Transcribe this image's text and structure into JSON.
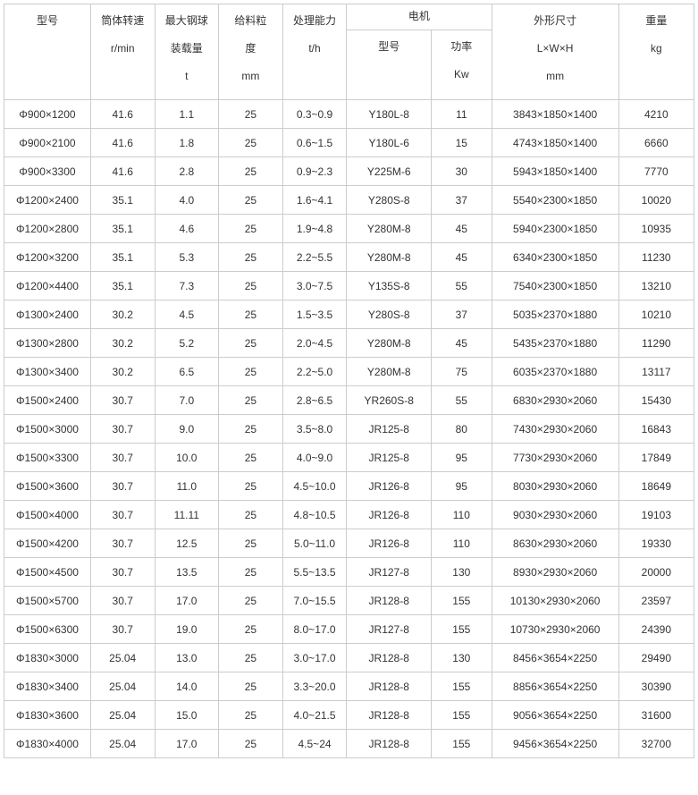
{
  "headers": {
    "model": "型号",
    "speed": "筒体转速",
    "speed_unit": "r/min",
    "load": "最大钢球",
    "load2": "装载量",
    "load_unit": "t",
    "feed": "给料粒",
    "feed2": "度",
    "feed_unit": "mm",
    "capacity": "处理能力",
    "capacity_unit": "t/h",
    "motor": "电机",
    "motor_model": "型号",
    "motor_power": "功率",
    "motor_power_unit": "Kw",
    "dim": "外形尺寸",
    "dim2": "L×W×H",
    "dim_unit": "mm",
    "weight": "重量",
    "weight_unit": "kg"
  },
  "rows": [
    {
      "model": "Φ900×1200",
      "speed": "41.6",
      "load": "1.1",
      "feed": "25",
      "capacity": "0.3~0.9",
      "motor_model": "Y180L-8",
      "motor_power": "11",
      "dim": "3843×1850×1400",
      "weight": "4210"
    },
    {
      "model": "Φ900×2100",
      "speed": "41.6",
      "load": "1.8",
      "feed": "25",
      "capacity": "0.6~1.5",
      "motor_model": "Y180L-6",
      "motor_power": "15",
      "dim": "4743×1850×1400",
      "weight": "6660"
    },
    {
      "model": "Φ900×3300",
      "speed": "41.6",
      "load": "2.8",
      "feed": "25",
      "capacity": "0.9~2.3",
      "motor_model": "Y225M-6",
      "motor_power": "30",
      "dim": "5943×1850×1400",
      "weight": "7770"
    },
    {
      "model": "Φ1200×2400",
      "speed": "35.1",
      "load": "4.0",
      "feed": "25",
      "capacity": "1.6~4.1",
      "motor_model": "Y280S-8",
      "motor_power": "37",
      "dim": "5540×2300×1850",
      "weight": "10020"
    },
    {
      "model": "Φ1200×2800",
      "speed": "35.1",
      "load": "4.6",
      "feed": "25",
      "capacity": "1.9~4.8",
      "motor_model": "Y280M-8",
      "motor_power": "45",
      "dim": "5940×2300×1850",
      "weight": "10935"
    },
    {
      "model": "Φ1200×3200",
      "speed": "35.1",
      "load": "5.3",
      "feed": "25",
      "capacity": "2.2~5.5",
      "motor_model": "Y280M-8",
      "motor_power": "45",
      "dim": "6340×2300×1850",
      "weight": "11230"
    },
    {
      "model": "Φ1200×4400",
      "speed": "35.1",
      "load": "7.3",
      "feed": "25",
      "capacity": "3.0~7.5",
      "motor_model": "Y135S-8",
      "motor_power": "55",
      "dim": "7540×2300×1850",
      "weight": "13210"
    },
    {
      "model": "Φ1300×2400",
      "speed": "30.2",
      "load": "4.5",
      "feed": "25",
      "capacity": "1.5~3.5",
      "motor_model": "Y280S-8",
      "motor_power": "37",
      "dim": "5035×2370×1880",
      "weight": "10210"
    },
    {
      "model": "Φ1300×2800",
      "speed": "30.2",
      "load": "5.2",
      "feed": "25",
      "capacity": "2.0~4.5",
      "motor_model": "Y280M-8",
      "motor_power": "45",
      "dim": "5435×2370×1880",
      "weight": "11290"
    },
    {
      "model": "Φ1300×3400",
      "speed": "30.2",
      "load": "6.5",
      "feed": "25",
      "capacity": "2.2~5.0",
      "motor_model": "Y280M-8",
      "motor_power": "75",
      "dim": "6035×2370×1880",
      "weight": "13117"
    },
    {
      "model": "Φ1500×2400",
      "speed": "30.7",
      "load": "7.0",
      "feed": "25",
      "capacity": "2.8~6.5",
      "motor_model": "YR260S-8",
      "motor_power": "55",
      "dim": "6830×2930×2060",
      "weight": "15430"
    },
    {
      "model": "Φ1500×3000",
      "speed": "30.7",
      "load": "9.0",
      "feed": "25",
      "capacity": "3.5~8.0",
      "motor_model": "JR125-8",
      "motor_power": "80",
      "dim": "7430×2930×2060",
      "weight": "16843"
    },
    {
      "model": "Φ1500×3300",
      "speed": "30.7",
      "load": "10.0",
      "feed": "25",
      "capacity": "4.0~9.0",
      "motor_model": "JR125-8",
      "motor_power": "95",
      "dim": "7730×2930×2060",
      "weight": "17849"
    },
    {
      "model": "Φ1500×3600",
      "speed": "30.7",
      "load": "11.0",
      "feed": "25",
      "capacity": "4.5~10.0",
      "motor_model": "JR126-8",
      "motor_power": "95",
      "dim": "8030×2930×2060",
      "weight": "18649"
    },
    {
      "model": "Φ1500×4000",
      "speed": "30.7",
      "load": "11.11",
      "feed": "25",
      "capacity": "4.8~10.5",
      "motor_model": "JR126-8",
      "motor_power": "110",
      "dim": "9030×2930×2060",
      "weight": "19103"
    },
    {
      "model": "Φ1500×4200",
      "speed": "30.7",
      "load": "12.5",
      "feed": "25",
      "capacity": "5.0~11.0",
      "motor_model": "JR126-8",
      "motor_power": "110",
      "dim": "8630×2930×2060",
      "weight": "19330"
    },
    {
      "model": "Φ1500×4500",
      "speed": "30.7",
      "load": "13.5",
      "feed": "25",
      "capacity": "5.5~13.5",
      "motor_model": "JR127-8",
      "motor_power": "130",
      "dim": "8930×2930×2060",
      "weight": "20000"
    },
    {
      "model": "Φ1500×5700",
      "speed": "30.7",
      "load": "17.0",
      "feed": "25",
      "capacity": "7.0~15.5",
      "motor_model": "JR128-8",
      "motor_power": "155",
      "dim": "10130×2930×2060",
      "weight": "23597"
    },
    {
      "model": "Φ1500×6300",
      "speed": "30.7",
      "load": "19.0",
      "feed": "25",
      "capacity": "8.0~17.0",
      "motor_model": "JR127-8",
      "motor_power": "155",
      "dim": "10730×2930×2060",
      "weight": "24390"
    },
    {
      "model": "Φ1830×3000",
      "speed": "25.04",
      "load": "13.0",
      "feed": "25",
      "capacity": "3.0~17.0",
      "motor_model": "JR128-8",
      "motor_power": "130",
      "dim": "8456×3654×2250",
      "weight": "29490"
    },
    {
      "model": "Φ1830×3400",
      "speed": "25.04",
      "load": "14.0",
      "feed": "25",
      "capacity": "3.3~20.0",
      "motor_model": "JR128-8",
      "motor_power": "155",
      "dim": "8856×3654×2250",
      "weight": "30390"
    },
    {
      "model": "Φ1830×3600",
      "speed": "25.04",
      "load": "15.0",
      "feed": "25",
      "capacity": "4.0~21.5",
      "motor_model": "JR128-8",
      "motor_power": "155",
      "dim": "9056×3654×2250",
      "weight": "31600"
    },
    {
      "model": "Φ1830×4000",
      "speed": "25.04",
      "load": "17.0",
      "feed": "25",
      "capacity": "4.5~24",
      "motor_model": "JR128-8",
      "motor_power": "155",
      "dim": "9456×3654×2250",
      "weight": "32700"
    }
  ]
}
